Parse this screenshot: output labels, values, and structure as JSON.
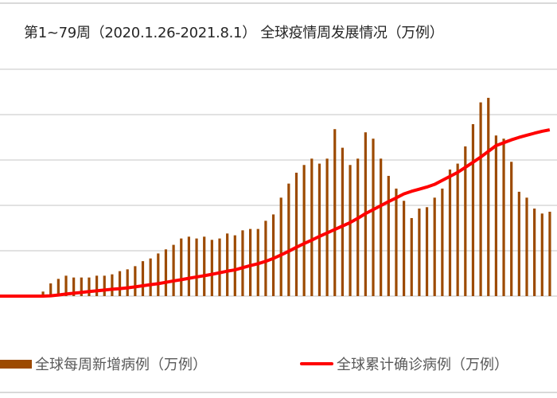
{
  "chart_data": {
    "type": "bar+line",
    "title": "第1~79周（2020.1.26-2021.8.1） 全球疫情周发展情况（万例）",
    "grid": true,
    "legend_position": "bottom",
    "primary_ylim": [
      0,
      500
    ],
    "secondary_ylim": [
      0,
      25000
    ],
    "series": [
      {
        "name": "全球每周新增病例（万例）",
        "type": "bar",
        "axis": "primary",
        "color": "#9c4a00",
        "values": [
          0,
          0,
          0,
          0,
          0,
          10,
          28,
          38,
          45,
          41,
          41,
          41,
          45,
          45,
          48,
          55,
          59,
          66,
          77,
          83,
          94,
          103,
          113,
          127,
          131,
          127,
          131,
          124,
          127,
          138,
          134,
          145,
          148,
          148,
          166,
          180,
          217,
          248,
          272,
          289,
          303,
          292,
          303,
          368,
          327,
          289,
          303,
          361,
          347,
          303,
          265,
          237,
          210,
          172,
          193,
          196,
          217,
          237,
          279,
          292,
          330,
          379,
          427,
          437,
          354,
          347,
          296,
          230,
          217,
          193,
          182,
          186
        ]
      },
      {
        "name": "全球累计确诊病例（万例）",
        "type": "line",
        "axis": "secondary",
        "color": "#ff0000",
        "values": [
          0,
          0,
          0,
          0,
          0,
          0,
          30,
          120,
          230,
          320,
          410,
          500,
          580,
          670,
          760,
          820,
          910,
          1020,
          1140,
          1260,
          1370,
          1520,
          1670,
          1810,
          1960,
          2110,
          2250,
          2400,
          2570,
          2750,
          2890,
          3130,
          3360,
          3570,
          3830,
          4150,
          4530,
          4940,
          5380,
          5790,
          6170,
          6580,
          6960,
          7340,
          7720,
          8100,
          8570,
          9090,
          9530,
          9970,
          10410,
          10820,
          11260,
          11550,
          11780,
          12020,
          12310,
          12750,
          13190,
          13630,
          14180,
          14740,
          15320,
          15940,
          16580,
          16900,
          17220,
          17490,
          17720,
          17950,
          18160,
          18330
        ]
      }
    ]
  }
}
